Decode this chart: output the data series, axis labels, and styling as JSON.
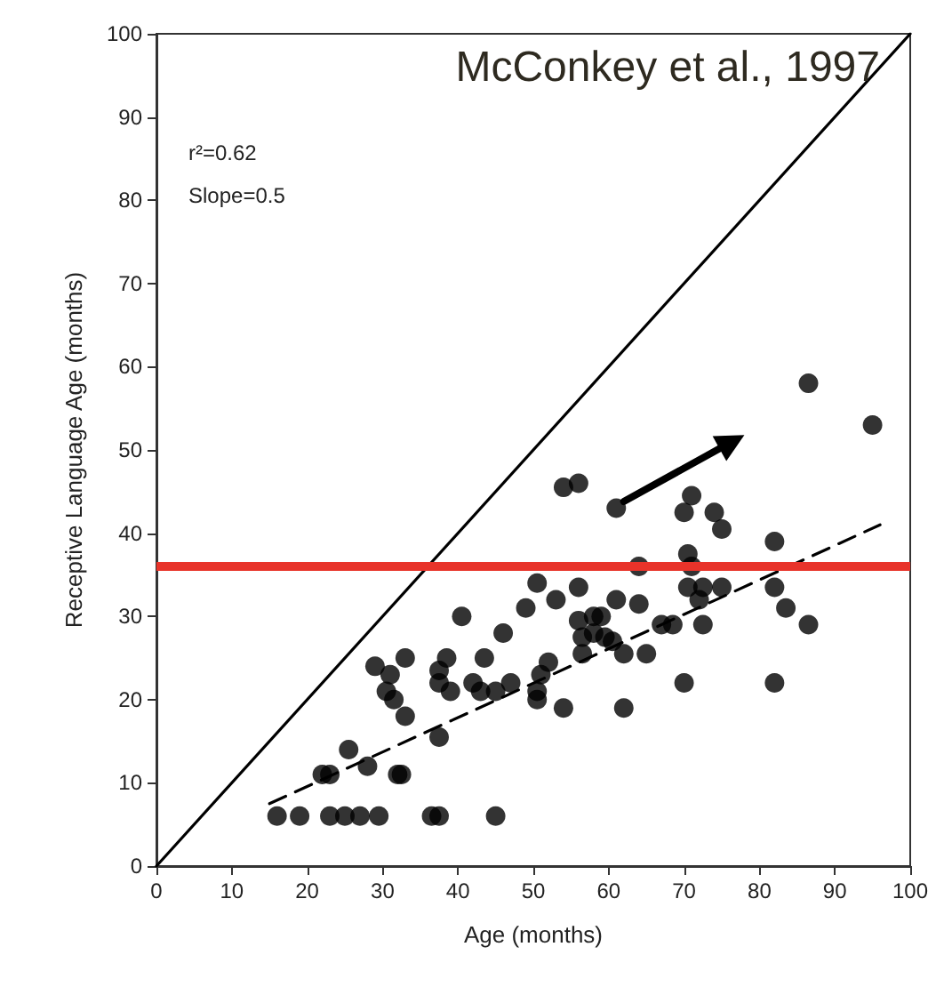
{
  "chart_data": {
    "type": "scatter",
    "xlabel": "Age (months)",
    "ylabel": "Receptive Language Age (months)",
    "annotations": [
      "McConkey et al., 1997",
      "r²=0.62",
      "Slope=0.5"
    ],
    "xlim": [
      0,
      100
    ],
    "ylim": [
      0,
      100
    ],
    "xticks": [
      0,
      10,
      20,
      30,
      40,
      50,
      60,
      70,
      80,
      90,
      100
    ],
    "yticks": [
      0,
      10,
      20,
      30,
      40,
      50,
      60,
      70,
      80,
      90,
      100
    ],
    "grid": false,
    "marker": "circle",
    "ref_lines": [
      {
        "axis": "y",
        "value": 36,
        "color": "#e8332a",
        "line_style": "solid"
      }
    ],
    "series": [
      {
        "color": "#000000",
        "x": [
          16,
          19,
          23,
          25,
          27,
          29.5,
          36.5,
          37.5,
          45,
          22,
          23,
          32,
          32.5,
          28,
          25.5,
          37.5,
          29,
          33,
          31,
          30.5,
          31.5,
          33,
          38.5,
          37.5,
          37.5,
          39,
          40.5,
          43.5,
          46,
          42,
          43,
          45,
          47,
          49,
          50.5,
          50.5,
          54,
          56,
          61,
          71,
          70,
          74,
          75,
          82,
          64,
          70.5,
          71,
          53,
          56,
          61,
          64,
          70.5,
          72.5,
          75,
          72,
          82,
          83.5,
          86.5,
          56,
          58,
          59,
          67,
          68.5,
          72.5,
          56.5,
          58,
          59.5,
          60.5,
          56.5,
          62,
          65,
          52,
          51,
          50.5,
          54,
          62,
          70,
          82,
          86.5,
          95
        ],
        "values": [
          6,
          6,
          6,
          6,
          6,
          6,
          6,
          6,
          6,
          11,
          11,
          11,
          11,
          12,
          14,
          15.5,
          24,
          25,
          23,
          21,
          20,
          18,
          25,
          23.5,
          22,
          21,
          30,
          25,
          28,
          22,
          21,
          21,
          22,
          31,
          34,
          21,
          45.5,
          46,
          43,
          44.5,
          42.5,
          42.5,
          40.5,
          39,
          36,
          37.5,
          36,
          32,
          33.5,
          32,
          31.5,
          33.5,
          33.5,
          33.5,
          32,
          33.5,
          31,
          29,
          29.5,
          30,
          30,
          29,
          29,
          29,
          27.5,
          28,
          27.5,
          27,
          25.5,
          25.5,
          25.5,
          24.5,
          23,
          20,
          19,
          19,
          22,
          22,
          58,
          53
        ]
      },
      {
        "type": "line",
        "color": "#000000",
        "line_style": "solid",
        "marker": "none",
        "x": [
          0,
          100
        ],
        "values": [
          0,
          100
        ]
      },
      {
        "type": "line",
        "color": "#000000",
        "line_style": "dashed",
        "marker": "none",
        "x": [
          15,
          96
        ],
        "values": [
          7.5,
          41
        ]
      }
    ]
  }
}
